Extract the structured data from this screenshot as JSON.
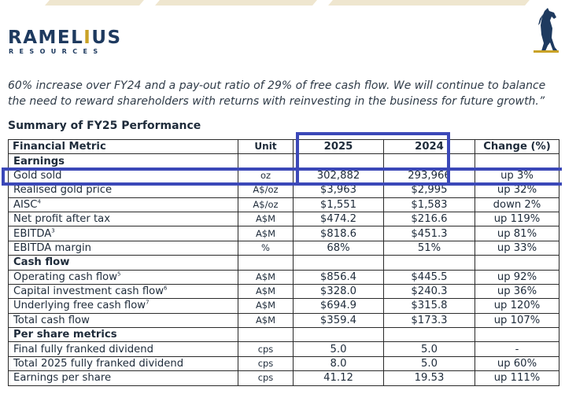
{
  "brand": {
    "name_part1": "RAMEL",
    "name_part2": "I",
    "name_part3": "US",
    "subtitle": "RESOURCES",
    "accent_color": "#c9a227",
    "primary_color": "#1e3a5f"
  },
  "quote": {
    "line1": "60% increase over FY24 and a pay-out ratio of 29% of free cash flow.  We will continue to balance",
    "line2": "the need to reward shareholders with returns with reinvesting in the business for future growth.”"
  },
  "section_title": "Summary of FY25 Performance",
  "table": {
    "headers": {
      "metric": "Financial Metric",
      "unit": "Unit",
      "y2025": "2025",
      "y2024": "2024",
      "change": "Change (%)"
    },
    "sections": {
      "earnings": "Earnings",
      "cash_flow": "Cash flow",
      "per_share": "Per share metrics"
    },
    "rows": [
      {
        "metric": "Gold sold",
        "unit": "oz",
        "y2025": "302,882",
        "y2024": "293,966",
        "change": "up 3%"
      },
      {
        "metric": "Realised gold price",
        "unit": "A$/oz",
        "y2025": "$3,963",
        "y2024": "$2,995",
        "change": "up 32%"
      },
      {
        "metric": "AISC",
        "sup": "4",
        "unit": "A$/oz",
        "y2025": "$1,551",
        "y2024": "$1,583",
        "change": "down 2%"
      },
      {
        "metric": "Net profit after tax",
        "unit": "A$M",
        "y2025": "$474.2",
        "y2024": "$216.6",
        "change": "up 119%"
      },
      {
        "metric": "EBITDA",
        "sup": "3",
        "unit": "A$M",
        "y2025": "$818.6",
        "y2024": "$451.3",
        "change": "up 81%"
      },
      {
        "metric": "EBITDA margin",
        "unit": "%",
        "y2025": "68%",
        "y2024": "51%",
        "change": "up 33%"
      },
      {
        "metric": "Operating cash flow",
        "sup": "5",
        "unit": "A$M",
        "y2025": "$856.4",
        "y2024": "$445.5",
        "change": "up 92%"
      },
      {
        "metric": "Capital investment cash flow",
        "sup": "6",
        "unit": "A$M",
        "y2025": "$328.0",
        "y2024": "$240.3",
        "change": "up 36%"
      },
      {
        "metric": "Underlying free cash flow",
        "sup": "7",
        "unit": "A$M",
        "y2025": "$694.9",
        "y2024": "$315.8",
        "change": "up 120%"
      },
      {
        "metric": "Total cash flow",
        "unit": "A$M",
        "y2025": "$359.4",
        "y2024": "$173.3",
        "change": "up 107%"
      },
      {
        "metric": "Final fully franked dividend",
        "unit": "cps",
        "y2025": "5.0",
        "y2024": "5.0",
        "change": "-"
      },
      {
        "metric": "Total 2025 fully franked dividend",
        "unit": "cps",
        "y2025": "8.0",
        "y2024": "5.0",
        "change": "up 60%"
      },
      {
        "metric": "Earnings per share",
        "unit": "cps",
        "y2025": "41.12",
        "y2024": "19.53",
        "change": "up 111%"
      }
    ]
  },
  "highlight_color": "#3b48b8"
}
